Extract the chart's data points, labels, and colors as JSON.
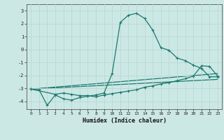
{
  "bg_color": "#cce8e5",
  "grid_color": "#b8d8d5",
  "line_color": "#1a7a6e",
  "xlabel": "Humidex (Indice chaleur)",
  "xlim": [
    -0.5,
    23.5
  ],
  "ylim": [
    -4.6,
    3.5
  ],
  "yticks": [
    -4,
    -3,
    -2,
    -1,
    0,
    1,
    2,
    3
  ],
  "xticks": [
    0,
    1,
    2,
    3,
    4,
    5,
    6,
    7,
    8,
    9,
    10,
    11,
    12,
    13,
    14,
    15,
    16,
    17,
    18,
    19,
    20,
    21,
    22,
    23
  ],
  "line1_x": [
    0,
    1,
    2,
    3,
    4,
    5,
    6,
    7,
    8,
    9,
    10,
    11,
    12,
    13,
    14,
    15,
    16,
    17,
    18,
    19,
    20,
    21,
    22,
    23
  ],
  "line1_y": [
    -3.05,
    -3.1,
    -4.3,
    -3.5,
    -3.8,
    -3.9,
    -3.7,
    -3.6,
    -3.5,
    -3.35,
    -1.85,
    2.1,
    2.65,
    2.8,
    2.4,
    1.5,
    0.15,
    -0.05,
    -0.65,
    -0.85,
    -1.2,
    -1.45,
    -2.1,
    -2.1
  ],
  "line2_x": [
    0,
    3,
    4,
    5,
    6,
    7,
    8,
    9,
    10,
    11,
    12,
    13,
    14,
    15,
    16,
    17,
    18,
    19,
    20,
    21,
    22,
    23
  ],
  "line2_y": [
    -3.05,
    -3.45,
    -3.35,
    -3.45,
    -3.55,
    -3.55,
    -3.65,
    -3.5,
    -3.4,
    -3.3,
    -3.2,
    -3.1,
    -2.9,
    -2.8,
    -2.65,
    -2.55,
    -2.4,
    -2.25,
    -2.05,
    -1.25,
    -1.3,
    -2.05
  ],
  "line3_x": [
    0,
    23
  ],
  "line3_y": [
    -3.05,
    -1.85
  ],
  "line4_x": [
    0,
    23
  ],
  "line4_y": [
    -3.05,
    -2.3
  ]
}
